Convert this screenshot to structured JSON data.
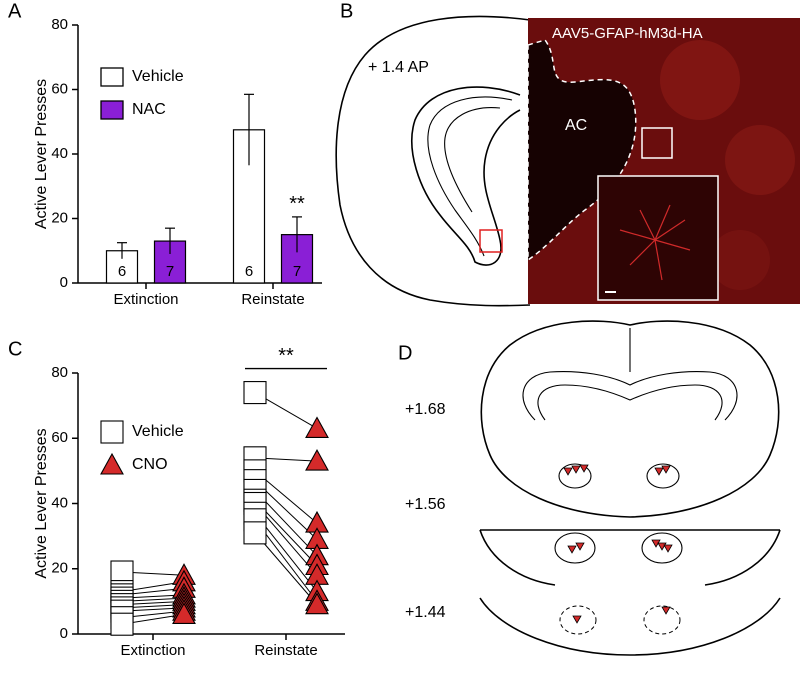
{
  "chart_data": [
    {
      "type": "bar",
      "y_label": "Active Lever Presses",
      "categories": [
        "Extinction",
        "Reinstate"
      ],
      "series": [
        {
          "name": "Vehicle",
          "color": "#ffffff",
          "values": [
            10,
            47.5
          ],
          "errors": [
            2.5,
            11
          ],
          "n": [
            6,
            6
          ]
        },
        {
          "name": "NAC",
          "color": "#8a1fd6",
          "values": [
            13,
            15
          ],
          "errors": [
            4,
            5.5
          ],
          "n": [
            7,
            7
          ]
        }
      ],
      "ylim": [
        0,
        80
      ],
      "yticks": [
        0,
        20,
        40,
        60,
        80
      ],
      "annotation": "**"
    },
    {
      "type": "paired-scatter",
      "y_label": "Active Lever Presses",
      "categories": [
        "Extinction",
        "Reinstate"
      ],
      "series": [
        {
          "name": "Vehicle",
          "color": "#ffffff",
          "marker": "square",
          "values": [
            [
              19,
              13,
              12,
              11,
              10,
              9,
              8,
              7,
              5,
              3
            ],
            [
              74,
              54,
              50,
              47,
              44,
              41,
              40,
              37,
              35,
              31
            ]
          ]
        },
        {
          "name": "CNO",
          "color": "#d42a2a",
          "marker": "triangle",
          "values": [
            [
              18,
              16,
              14,
              12,
              11,
              10,
              9,
              8,
              7,
              6
            ],
            [
              63,
              53,
              34,
              29,
              24,
              21,
              18,
              13,
              10,
              9
            ]
          ]
        }
      ],
      "ylim": [
        0,
        80
      ],
      "yticks": [
        0,
        20,
        40,
        60,
        80
      ],
      "annotation": "**"
    }
  ],
  "panel_labels": [
    "A",
    "B",
    "C",
    "D"
  ],
  "image_b": {
    "level": "+ 1.4 AP",
    "construct": "AAV5-GFAP-hM3d-HA",
    "region": "AC"
  },
  "atlas_d": {
    "levels": [
      "+1.68",
      "+1.56",
      "+1.44"
    ]
  }
}
